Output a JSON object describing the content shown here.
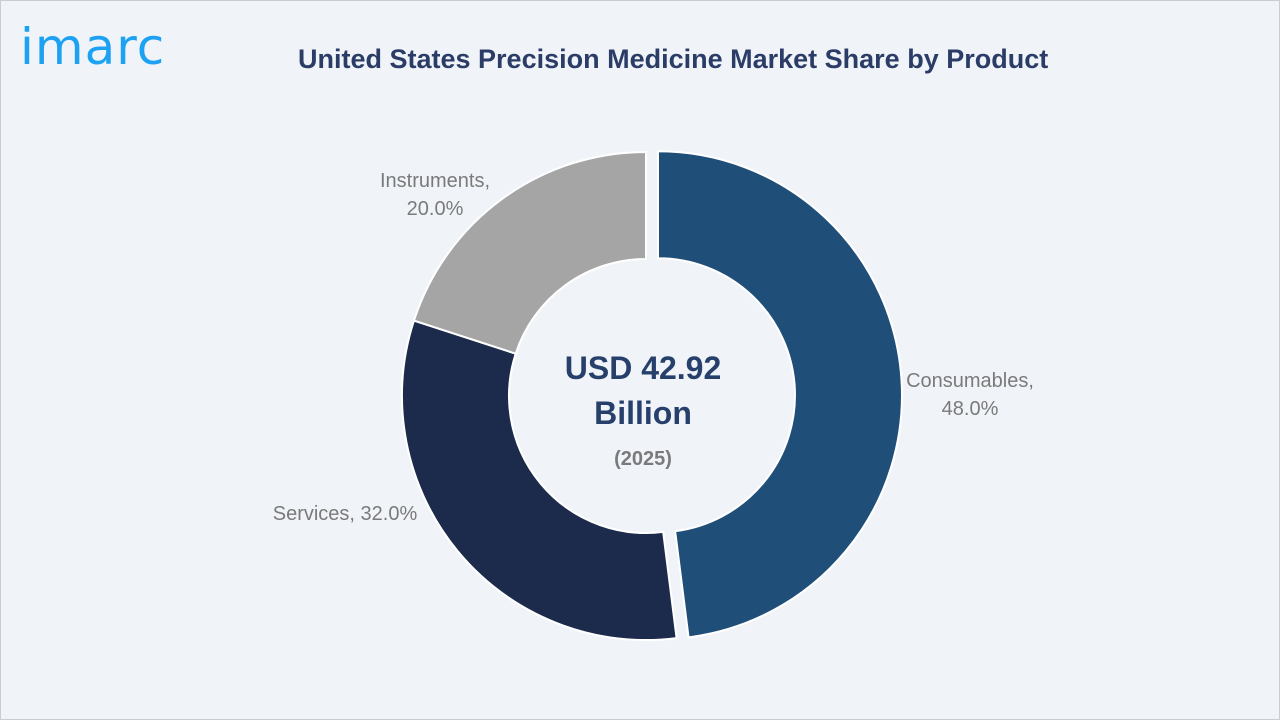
{
  "brand": {
    "logo_text": "imarc",
    "color": "#1da1f2"
  },
  "chart_data": {
    "type": "pie",
    "title": "United States Precision Medicine Market Share by Product",
    "center_value": "USD 42.92",
    "center_unit": "Billion",
    "center_year": "(2025)",
    "slices": [
      {
        "name": "Consumables",
        "value": 48.0,
        "color": "#1f4e79",
        "label_line1": "Consumables,",
        "label_line2": "48.0%"
      },
      {
        "name": "Services",
        "value": 32.0,
        "color": "#1c2b4b",
        "label_line1": "Services, 32.0%",
        "label_line2": ""
      },
      {
        "name": "Instruments",
        "value": 20.0,
        "color": "#a5a5a5",
        "label_line1": "Instruments,",
        "label_line2": "20.0%"
      }
    ]
  }
}
